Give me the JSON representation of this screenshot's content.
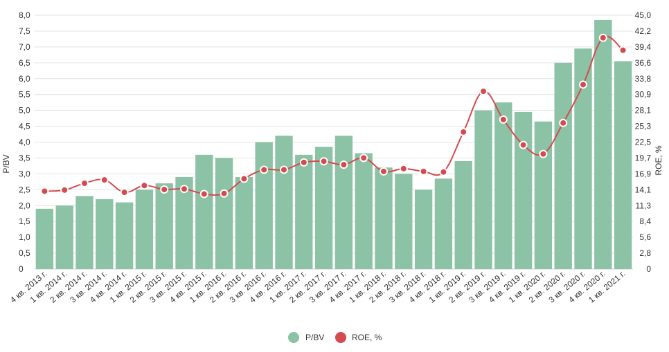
{
  "chart_data": {
    "type": "bar+line",
    "title": "",
    "categories": [
      "4 кв. 2013 г.",
      "1 кв. 2014 г.",
      "2 кв. 2014 г.",
      "3 кв. 2014 г.",
      "4 кв. 2014 г.",
      "1 кв. 2015 г.",
      "2 кв. 2015 г.",
      "3 кв. 2015 г.",
      "4 кв. 2015 г.",
      "1 кв. 2016 г.",
      "2 кв. 2016 г.",
      "3 кв. 2016 г.",
      "4 кв. 2016 г.",
      "1 кв. 2017 г.",
      "2 кв. 2017 г.",
      "3 кв. 2017 г.",
      "4 кв. 2017 г.",
      "1 кв. 2018 г.",
      "2 кв. 2018 г.",
      "3 кв. 2018 г.",
      "4 кв. 2018 г.",
      "1 кв. 2019 г.",
      "2 кв. 2019 г.",
      "3 кв. 2019 г.",
      "4 кв. 2019 г.",
      "1 кв. 2020 г.",
      "2 кв. 2020 г.",
      "3 кв. 2020 г.",
      "4 кв. 2020 г.",
      "1 кв. 2021 г."
    ],
    "series": [
      {
        "name": "P/BV",
        "type": "bar",
        "axis": "left",
        "color": "#8cc2a5",
        "values": [
          1.9,
          2.0,
          2.3,
          2.2,
          2.1,
          2.5,
          2.7,
          2.9,
          3.6,
          3.5,
          2.9,
          4.0,
          4.2,
          3.6,
          3.85,
          4.2,
          3.65,
          3.2,
          3.0,
          2.5,
          2.85,
          3.4,
          5.0,
          5.25,
          4.95,
          4.65,
          6.5,
          6.95,
          7.85,
          6.55
        ]
      },
      {
        "name": "ROE, %",
        "type": "line",
        "axis": "right",
        "color": "#d44a4f",
        "values": [
          13.8,
          14.0,
          15.2,
          15.8,
          13.6,
          14.8,
          14.1,
          14.2,
          13.3,
          13.4,
          16.0,
          17.6,
          17.6,
          18.9,
          19.1,
          18.5,
          19.7,
          17.3,
          17.8,
          17.3,
          17.2,
          24.3,
          31.5,
          26.5,
          22.0,
          20.4,
          25.9,
          32.7,
          41.0,
          38.8
        ]
      }
    ],
    "ylabel_left": "P/BV",
    "ylabel_right": "ROE, %",
    "ylim_left": [
      0,
      8
    ],
    "ylim_right": [
      0,
      45
    ],
    "yticks_left": [
      "0",
      "0,5",
      "1,0",
      "1,5",
      "2,0",
      "2,5",
      "3,0",
      "3,5",
      "4,0",
      "4,5",
      "5,0",
      "5,5",
      "6,0",
      "6,5",
      "7,0",
      "7,5",
      "8,0"
    ],
    "yticks_right": [
      "0",
      "2,8",
      "5,6",
      "8,4",
      "11,3",
      "14,1",
      "16,9",
      "19,7",
      "22,5",
      "25,3",
      "28,1",
      "30,9",
      "33,8",
      "36,6",
      "39,4",
      "42,2",
      "45,0"
    ],
    "grid": true,
    "legend": {
      "position": "bottom-center",
      "items": [
        {
          "label": "P/BV",
          "color": "#8cc2a5"
        },
        {
          "label": "ROE, %",
          "color": "#d44a4f"
        }
      ]
    }
  }
}
